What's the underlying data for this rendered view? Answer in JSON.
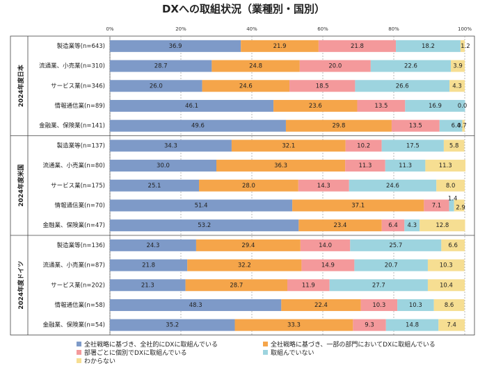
{
  "chart_data": {
    "type": "bar",
    "orientation": "horizontal",
    "stacked": true,
    "percent_stacked": true,
    "title": "DXへの取組状況（業種別・国別）",
    "xlim": [
      0,
      100
    ],
    "x_ticks": [
      "0%",
      "20%",
      "40%",
      "60%",
      "80%",
      "100%"
    ],
    "grid": true,
    "legend_position": "bottom",
    "series": [
      {
        "name": "全社戦略に基づき、全社的にDXに取組んでいる",
        "color": "#7E9AC8"
      },
      {
        "name": "全社戦略に基づき、一部の部門においてDXに取組んでいる",
        "color": "#F5A54A"
      },
      {
        "name": "部署ごとに個別でDXに取組んでいる",
        "color": "#F4999B"
      },
      {
        "name": "取組んでいない",
        "color": "#9DD4DF"
      },
      {
        "name": "わからない",
        "color": "#F6DE92"
      }
    ],
    "groups": [
      {
        "label": "2024年度日本",
        "rows": [
          {
            "category": "製造業等(n=643)",
            "values": [
              36.9,
              21.9,
              21.8,
              18.2,
              1.2
            ],
            "labels": [
              "36.9",
              "21.9",
              "21.8",
              "18.2",
              "1.2"
            ]
          },
          {
            "category": "流通業、小売業(n=310)",
            "values": [
              28.7,
              24.8,
              20.0,
              22.6,
              3.9
            ],
            "labels": [
              "28.7",
              "24.8",
              "20.0",
              "22.6",
              "3.9"
            ]
          },
          {
            "category": "サービス業(n=346)",
            "values": [
              26.0,
              24.6,
              18.5,
              26.6,
              4.3
            ],
            "labels": [
              "26.0",
              "24.6",
              "18.5",
              "26.6",
              "4.3"
            ]
          },
          {
            "category": "情報通信業(n=89)",
            "values": [
              46.1,
              23.6,
              13.5,
              16.9,
              0.0
            ],
            "labels": [
              "46.1",
              "23.6",
              "13.5",
              "16.9",
              "0.0"
            ]
          },
          {
            "category": "金融業、保険業(n=141)",
            "values": [
              49.6,
              29.8,
              13.5,
              6.4,
              0.7
            ],
            "labels": [
              "49.6",
              "29.8",
              "13.5",
              "6.4",
              "0.7"
            ]
          }
        ]
      },
      {
        "label": "2024年度米国",
        "rows": [
          {
            "category": "製造業等(n=137)",
            "values": [
              34.3,
              32.1,
              10.2,
              17.5,
              5.8
            ],
            "labels": [
              "34.3",
              "32.1",
              "10.2",
              "17.5",
              "5.8"
            ]
          },
          {
            "category": "流通業、小売業(n=80)",
            "values": [
              30.0,
              36.3,
              11.3,
              11.3,
              11.3
            ],
            "labels": [
              "30.0",
              "36.3",
              "11.3",
              "11.3",
              "11.3"
            ]
          },
          {
            "category": "サービス業(n=175)",
            "values": [
              25.1,
              28.0,
              14.3,
              24.6,
              8.0
            ],
            "labels": [
              "25.1",
              "28.0",
              "14.3",
              "24.6",
              "8.0"
            ]
          },
          {
            "category": "情報通信業(n=70)",
            "values": [
              51.4,
              37.1,
              7.1,
              1.4,
              2.9
            ],
            "labels": [
              "51.4",
              "37.1",
              "7.1",
              "1.4",
              "2.9"
            ]
          },
          {
            "category": "金融業、保険業(n=47)",
            "values": [
              53.2,
              23.4,
              6.4,
              4.3,
              12.8
            ],
            "labels": [
              "53.2",
              "23.4",
              "6.4",
              "4.3",
              "12.8"
            ]
          }
        ]
      },
      {
        "label": "2024年度ドイツ",
        "rows": [
          {
            "category": "製造業等(n=136)",
            "values": [
              24.3,
              29.4,
              14.0,
              25.7,
              6.6
            ],
            "labels": [
              "24.3",
              "29.4",
              "14.0",
              "25.7",
              "6.6"
            ]
          },
          {
            "category": "流通業、小売業(n=87)",
            "values": [
              21.8,
              32.2,
              14.9,
              20.7,
              10.3
            ],
            "labels": [
              "21.8",
              "32.2",
              "14.9",
              "20.7",
              "10.3"
            ]
          },
          {
            "category": "サービス業(n=202)",
            "values": [
              21.3,
              28.7,
              11.9,
              27.7,
              10.4
            ],
            "labels": [
              "21.3",
              "28.7",
              "11.9",
              "27.7",
              "10.4"
            ]
          },
          {
            "category": "情報通信業(n=58)",
            "values": [
              48.3,
              22.4,
              10.3,
              10.3,
              8.6
            ],
            "labels": [
              "48.3",
              "22.4",
              "10.3",
              "10.3",
              "8.6"
            ]
          },
          {
            "category": "金融業、保険業(n=54)",
            "values": [
              35.2,
              33.3,
              9.3,
              14.8,
              7.4
            ],
            "labels": [
              "35.2",
              "33.3",
              "9.3",
              "14.8",
              "7.4"
            ]
          }
        ]
      }
    ]
  }
}
